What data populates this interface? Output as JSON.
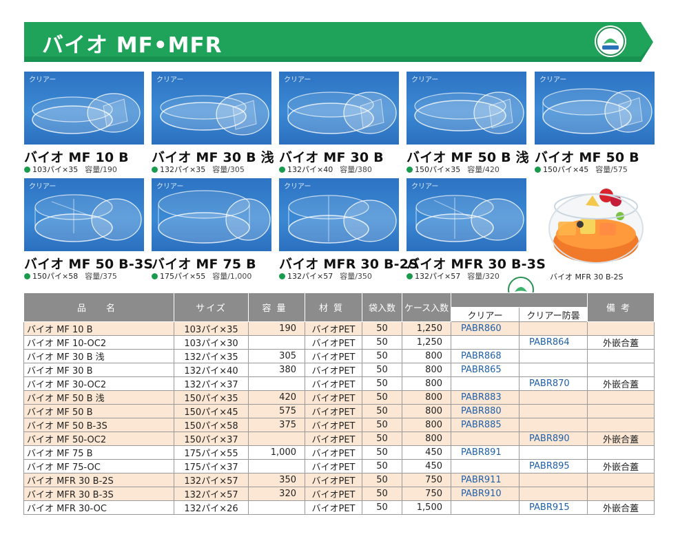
{
  "header": {
    "title": "バイオ MF•MFR"
  },
  "tiles": [
    {
      "tag": "クリアー",
      "name": "バイオ MF 10 B",
      "size": "103パイ×35",
      "capacity": "容量/190"
    },
    {
      "tag": "クリアー",
      "name": "バイオ MF 30 B 浅",
      "size": "132パイ×35",
      "capacity": "容量/305"
    },
    {
      "tag": "クリアー",
      "name": "バイオ MF 30 B",
      "size": "132パイ×40",
      "capacity": "容量/380"
    },
    {
      "tag": "クリアー",
      "name": "バイオ MF 50 B 浅",
      "size": "150パイ×35",
      "capacity": "容量/420"
    },
    {
      "tag": "クリアー",
      "name": "バイオ MF 50 B",
      "size": "150パイ×45",
      "capacity": "容量/575"
    },
    {
      "tag": "クリアー",
      "name": "バイオ MF 50 B-3S",
      "size": "150パイ×58",
      "capacity": "容量/375"
    },
    {
      "tag": "クリアー",
      "name": "バイオ MF 75 B",
      "size": "175パイ×55",
      "capacity": "容量/1,000"
    },
    {
      "tag": "クリアー",
      "name": "バイオ MFR 30 B-2S",
      "size": "132パイ×57",
      "capacity": "容量/350"
    },
    {
      "tag": "クリアー",
      "name": "バイオ MFR 30 B-3S",
      "size": "132パイ×57",
      "capacity": "容量/320"
    }
  ],
  "food_photo_caption": "バイオ MFR 30 B-2S",
  "table": {
    "headers": {
      "name": "品　名",
      "size": "サイズ",
      "capacity": "容量",
      "material": "材質",
      "bag": "袋入数",
      "case": "ケース入数",
      "clear": "クリアー",
      "antifog": "クリアー防曇",
      "note": "備考"
    },
    "rows": [
      {
        "name": "バイオ MF 10 B",
        "size": "103パイ×35",
        "capacity": "190",
        "material": "バイオPET",
        "bag": "50",
        "case": "1,250",
        "clear": "PABR860",
        "antifog": "",
        "note": ""
      },
      {
        "name": "バイオ MF 10-OC2",
        "size": "103パイ×30",
        "capacity": "",
        "material": "バイオPET",
        "bag": "50",
        "case": "1,250",
        "clear": "",
        "antifog": "PABR864",
        "note": "外嵌合蓋"
      },
      {
        "name": "バイオ MF 30 B 浅",
        "size": "132パイ×35",
        "capacity": "305",
        "material": "バイオPET",
        "bag": "50",
        "case": "800",
        "clear": "PABR868",
        "antifog": "",
        "note": ""
      },
      {
        "name": "バイオ MF 30 B",
        "size": "132パイ×40",
        "capacity": "380",
        "material": "バイオPET",
        "bag": "50",
        "case": "800",
        "clear": "PABR865",
        "antifog": "",
        "note": ""
      },
      {
        "name": "バイオ MF 30-OC2",
        "size": "132パイ×37",
        "capacity": "",
        "material": "バイオPET",
        "bag": "50",
        "case": "800",
        "clear": "",
        "antifog": "PABR870",
        "note": "外嵌合蓋"
      },
      {
        "name": "バイオ MF 50 B 浅",
        "size": "150パイ×35",
        "capacity": "420",
        "material": "バイオPET",
        "bag": "50",
        "case": "800",
        "clear": "PABR883",
        "antifog": "",
        "note": ""
      },
      {
        "name": "バイオ MF 50 B",
        "size": "150パイ×45",
        "capacity": "575",
        "material": "バイオPET",
        "bag": "50",
        "case": "800",
        "clear": "PABR880",
        "antifog": "",
        "note": ""
      },
      {
        "name": "バイオ MF 50 B-3S",
        "size": "150パイ×58",
        "capacity": "375",
        "material": "バイオPET",
        "bag": "50",
        "case": "800",
        "clear": "PABR885",
        "antifog": "",
        "note": ""
      },
      {
        "name": "バイオ MF 50-OC2",
        "size": "150パイ×37",
        "capacity": "",
        "material": "バイオPET",
        "bag": "50",
        "case": "800",
        "clear": "",
        "antifog": "PABR890",
        "note": "外嵌合蓋"
      },
      {
        "name": "バイオ MF 75 B",
        "size": "175パイ×55",
        "capacity": "1,000",
        "material": "バイオPET",
        "bag": "50",
        "case": "450",
        "clear": "PABR891",
        "antifog": "",
        "note": ""
      },
      {
        "name": "バイオ MF 75-OC",
        "size": "175パイ×37",
        "capacity": "",
        "material": "バイオPET",
        "bag": "50",
        "case": "450",
        "clear": "",
        "antifog": "PABR895",
        "note": "外嵌合蓋"
      },
      {
        "name": "バイオ MFR 30 B-2S",
        "size": "132パイ×57",
        "capacity": "350",
        "material": "バイオPET",
        "bag": "50",
        "case": "750",
        "clear": "PABR911",
        "antifog": "",
        "note": ""
      },
      {
        "name": "バイオ MFR 30 B-3S",
        "size": "132パイ×57",
        "capacity": "320",
        "material": "バイオPET",
        "bag": "50",
        "case": "750",
        "clear": "PABR910",
        "antifog": "",
        "note": ""
      },
      {
        "name": "バイオ MFR 30-OC",
        "size": "132パイ×26",
        "capacity": "",
        "material": "バイオPET",
        "bag": "50",
        "case": "1,500",
        "clear": "",
        "antifog": "PABR915",
        "note": "外嵌合蓋"
      }
    ]
  },
  "colors": {
    "banner_green": "#1fa35a",
    "photo_blue": "#3581cc",
    "row_highlight": "#fbe7d3",
    "header_gray": "#8c8c8c",
    "code_blue": "#1e5fa8",
    "bullet_green": "#1a9a4c"
  },
  "icons": {
    "eco_mark": "biomass-mark-icon",
    "bullet": "green-dot-icon"
  }
}
